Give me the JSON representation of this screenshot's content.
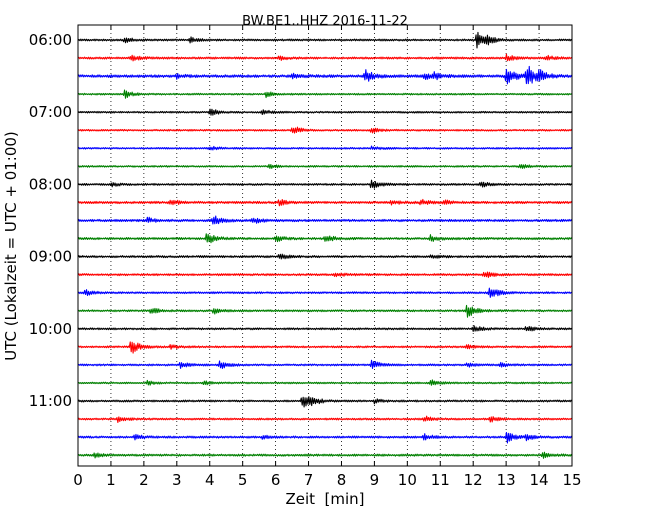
{
  "chart_data": {
    "type": "line",
    "title": "BW.BE1..HHZ 2016-11-22",
    "xlabel": "Zeit  [min]",
    "ylabel": "UTC (Lokalzeit = UTC + 01:00)",
    "xlim": [
      0,
      15
    ],
    "x_ticks": [
      0,
      1,
      2,
      3,
      4,
      5,
      6,
      7,
      8,
      9,
      10,
      11,
      12,
      13,
      14,
      15
    ],
    "x_tick_labels": [
      "0",
      "1",
      "2",
      "3",
      "4",
      "5",
      "6",
      "7",
      "8",
      "9",
      "10",
      "11",
      "12",
      "13",
      "14",
      "15"
    ],
    "trace_interval_min": 15,
    "y_tick_labels": [
      "06:00",
      "07:00",
      "08:00",
      "09:00",
      "10:00",
      "11:00"
    ],
    "grid": "vertical dotted",
    "colors": [
      "#000000",
      "#ff0000",
      "#0000ff",
      "#008000"
    ],
    "traces": [
      {
        "start": "06:00",
        "color": "#000000",
        "noise": 0.9,
        "events": [
          {
            "t": 1.4,
            "a": 3
          },
          {
            "t": 3.4,
            "a": 2.5
          },
          {
            "t": 12.1,
            "a": 9
          },
          {
            "t": 12.4,
            "a": 3
          }
        ]
      },
      {
        "start": "06:15",
        "color": "#ff0000",
        "noise": 1.0,
        "events": [
          {
            "t": 1.6,
            "a": 3
          },
          {
            "t": 6.1,
            "a": 2
          },
          {
            "t": 13.0,
            "a": 3.5
          },
          {
            "t": 14.2,
            "a": 2.5
          }
        ]
      },
      {
        "start": "06:30",
        "color": "#0000ff",
        "noise": 1.3,
        "events": [
          {
            "t": 3.0,
            "a": 2
          },
          {
            "t": 6.5,
            "a": 3
          },
          {
            "t": 8.7,
            "a": 7
          },
          {
            "t": 10.5,
            "a": 3
          },
          {
            "t": 10.8,
            "a": 3
          },
          {
            "t": 13.0,
            "a": 10
          },
          {
            "t": 13.6,
            "a": 14
          },
          {
            "t": 14.0,
            "a": 5
          }
        ]
      },
      {
        "start": "06:45",
        "color": "#008000",
        "noise": 0.8,
        "events": [
          {
            "t": 1.4,
            "a": 4
          },
          {
            "t": 5.7,
            "a": 3
          }
        ]
      },
      {
        "start": "07:00",
        "color": "#000000",
        "noise": 0.8,
        "events": [
          {
            "t": 4.0,
            "a": 4
          },
          {
            "t": 5.6,
            "a": 2.5
          }
        ]
      },
      {
        "start": "07:15",
        "color": "#ff0000",
        "noise": 0.8,
        "events": [
          {
            "t": 6.5,
            "a": 5
          },
          {
            "t": 8.9,
            "a": 3
          }
        ]
      },
      {
        "start": "07:30",
        "color": "#0000ff",
        "noise": 0.8,
        "events": [
          {
            "t": 4.0,
            "a": 2
          },
          {
            "t": 8.9,
            "a": 2
          }
        ]
      },
      {
        "start": "07:45",
        "color": "#008000",
        "noise": 0.8,
        "events": [
          {
            "t": 5.8,
            "a": 2
          },
          {
            "t": 13.4,
            "a": 3
          }
        ]
      },
      {
        "start": "08:00",
        "color": "#000000",
        "noise": 0.9,
        "events": [
          {
            "t": 1.0,
            "a": 2
          },
          {
            "t": 8.9,
            "a": 5
          },
          {
            "t": 12.2,
            "a": 3
          }
        ]
      },
      {
        "start": "08:15",
        "color": "#ff0000",
        "noise": 1.1,
        "events": [
          {
            "t": 2.8,
            "a": 3
          },
          {
            "t": 6.1,
            "a": 3
          },
          {
            "t": 9.5,
            "a": 2
          },
          {
            "t": 10.4,
            "a": 3
          },
          {
            "t": 11.1,
            "a": 2
          }
        ]
      },
      {
        "start": "08:30",
        "color": "#0000ff",
        "noise": 1.1,
        "events": [
          {
            "t": 2.1,
            "a": 3
          },
          {
            "t": 4.1,
            "a": 5
          },
          {
            "t": 5.3,
            "a": 3
          }
        ]
      },
      {
        "start": "08:45",
        "color": "#008000",
        "noise": 1.0,
        "events": [
          {
            "t": 3.9,
            "a": 6
          },
          {
            "t": 6.0,
            "a": 3
          },
          {
            "t": 7.5,
            "a": 4
          },
          {
            "t": 10.7,
            "a": 3
          }
        ]
      },
      {
        "start": "09:00",
        "color": "#000000",
        "noise": 1.0,
        "events": [
          {
            "t": 6.1,
            "a": 3
          },
          {
            "t": 10.7,
            "a": 2
          }
        ]
      },
      {
        "start": "09:15",
        "color": "#ff0000",
        "noise": 1.0,
        "events": [
          {
            "t": 7.8,
            "a": 2
          },
          {
            "t": 12.3,
            "a": 4
          }
        ]
      },
      {
        "start": "09:30",
        "color": "#0000ff",
        "noise": 0.9,
        "events": [
          {
            "t": 0.2,
            "a": 3
          },
          {
            "t": 12.5,
            "a": 7
          }
        ]
      },
      {
        "start": "09:45",
        "color": "#008000",
        "noise": 0.9,
        "events": [
          {
            "t": 2.2,
            "a": 3
          },
          {
            "t": 4.1,
            "a": 3
          },
          {
            "t": 11.8,
            "a": 7
          }
        ]
      },
      {
        "start": "10:00",
        "color": "#000000",
        "noise": 0.9,
        "events": [
          {
            "t": 12.0,
            "a": 3
          },
          {
            "t": 13.6,
            "a": 3
          }
        ]
      },
      {
        "start": "10:15",
        "color": "#ff0000",
        "noise": 0.9,
        "events": [
          {
            "t": 1.6,
            "a": 8
          },
          {
            "t": 2.8,
            "a": 2
          },
          {
            "t": 11.8,
            "a": 2
          }
        ]
      },
      {
        "start": "10:30",
        "color": "#0000ff",
        "noise": 0.9,
        "events": [
          {
            "t": 3.1,
            "a": 3
          },
          {
            "t": 4.3,
            "a": 4
          },
          {
            "t": 8.9,
            "a": 5
          },
          {
            "t": 11.8,
            "a": 2
          },
          {
            "t": 12.8,
            "a": 2
          }
        ]
      },
      {
        "start": "10:45",
        "color": "#008000",
        "noise": 0.8,
        "events": [
          {
            "t": 2.1,
            "a": 2
          },
          {
            "t": 3.8,
            "a": 2
          },
          {
            "t": 10.7,
            "a": 3
          }
        ]
      },
      {
        "start": "11:00",
        "color": "#000000",
        "noise": 0.9,
        "events": [
          {
            "t": 6.8,
            "a": 7
          },
          {
            "t": 7.0,
            "a": 5
          },
          {
            "t": 9.0,
            "a": 2
          }
        ]
      },
      {
        "start": "11:15",
        "color": "#ff0000",
        "noise": 0.9,
        "events": [
          {
            "t": 1.2,
            "a": 3
          },
          {
            "t": 10.5,
            "a": 3
          },
          {
            "t": 12.5,
            "a": 3
          }
        ]
      },
      {
        "start": "11:30",
        "color": "#0000ff",
        "noise": 1.0,
        "events": [
          {
            "t": 1.7,
            "a": 3
          },
          {
            "t": 5.6,
            "a": 2
          },
          {
            "t": 10.5,
            "a": 3
          },
          {
            "t": 13.0,
            "a": 6
          },
          {
            "t": 13.6,
            "a": 3
          }
        ]
      },
      {
        "start": "11:45",
        "color": "#008000",
        "noise": 1.0,
        "events": [
          {
            "t": 0.5,
            "a": 2
          },
          {
            "t": 14.1,
            "a": 3
          }
        ]
      }
    ]
  }
}
